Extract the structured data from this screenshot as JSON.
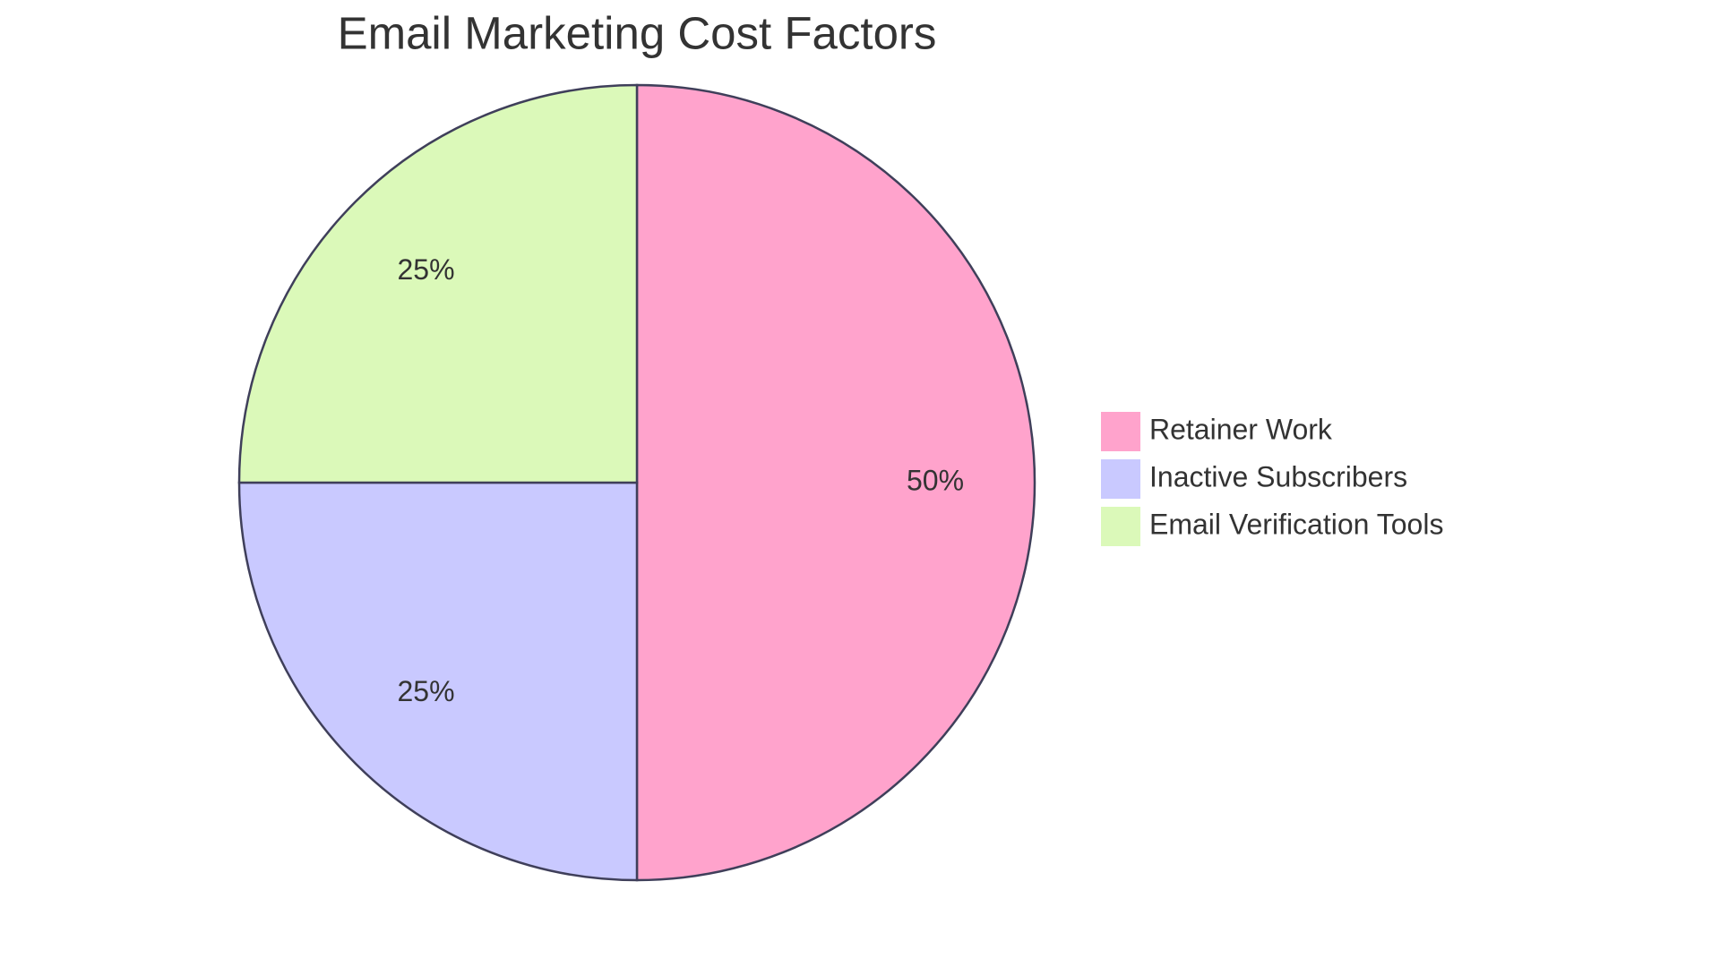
{
  "chart_data": {
    "type": "pie",
    "title": "Email Marketing Cost Factors",
    "categories": [
      "Retainer Work",
      "Inactive Subscribers",
      "Email Verification Tools"
    ],
    "values": [
      50,
      25,
      25
    ],
    "value_labels": [
      "50%",
      "25%",
      "25%"
    ],
    "colors": [
      "#ffa3cc",
      "#c9c9ff",
      "#dbf9b9"
    ],
    "legend": "right"
  }
}
